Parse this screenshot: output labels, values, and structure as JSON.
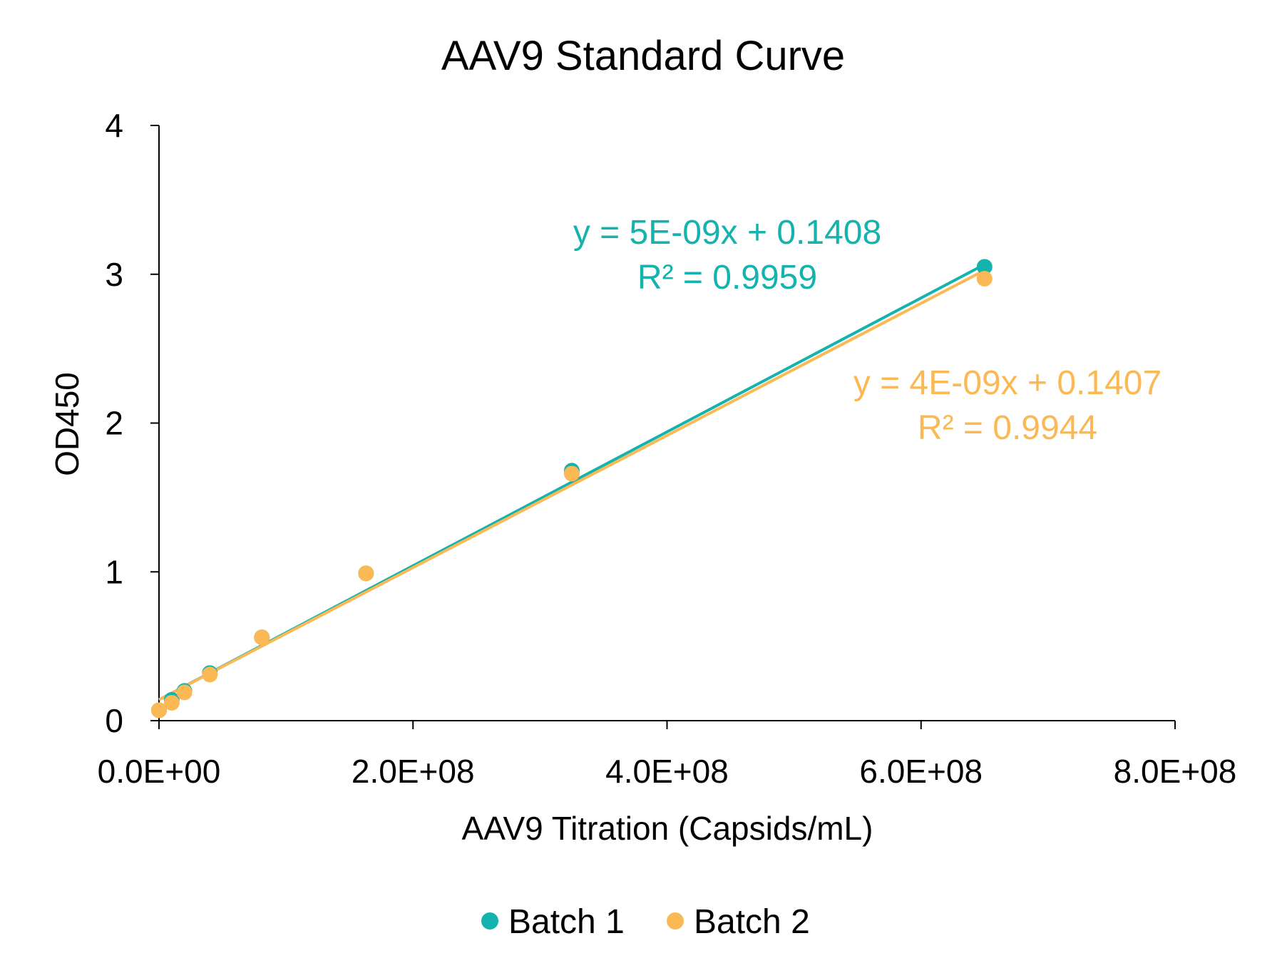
{
  "chart_data": {
    "type": "scatter",
    "title": "AAV9 Standard Curve",
    "xlabel": "AAV9 Titration (Capsids/mL)",
    "ylabel": "OD450",
    "xlim": [
      0,
      800000000
    ],
    "ylim": [
      0,
      4
    ],
    "x_ticks": [
      {
        "value": 0,
        "label": "0.0E+00"
      },
      {
        "value": 200000000,
        "label": "2.0E+08"
      },
      {
        "value": 400000000,
        "label": "4.0E+08"
      },
      {
        "value": 600000000,
        "label": "6.0E+08"
      },
      {
        "value": 800000000,
        "label": "8.0E+08"
      }
    ],
    "y_ticks": [
      {
        "value": 0,
        "label": "0"
      },
      {
        "value": 1,
        "label": "1"
      },
      {
        "value": 2,
        "label": "2"
      },
      {
        "value": 3,
        "label": "3"
      },
      {
        "value": 4,
        "label": "4"
      }
    ],
    "grid": false,
    "legend_position": "bottom",
    "series": [
      {
        "name": "Batch 1",
        "color": "#14b3ad",
        "x": [
          0,
          10000000,
          20000000,
          40000000,
          81000000,
          163000000,
          325000000,
          650000000
        ],
        "y": [
          0.07,
          0.14,
          0.2,
          0.32,
          0.56,
          0.99,
          1.68,
          3.05
        ],
        "trendline": {
          "slope": 4.5e-09,
          "intercept": 0.1408,
          "x_range": [
            0,
            650000000
          ]
        },
        "equation": "y = 5E-09x + 0.1408",
        "r2": "R² = 0.9959"
      },
      {
        "name": "Batch 2",
        "color": "#fbb955",
        "x": [
          0,
          10000000,
          20000000,
          40000000,
          81000000,
          163000000,
          325000000,
          650000000
        ],
        "y": [
          0.07,
          0.12,
          0.19,
          0.31,
          0.56,
          0.99,
          1.66,
          2.97
        ],
        "trendline": {
          "slope": 4.44e-09,
          "intercept": 0.1407,
          "x_range": [
            0,
            650000000
          ]
        },
        "equation": "y = 4E-09x + 0.1407",
        "r2": "R² = 0.9944"
      }
    ]
  }
}
